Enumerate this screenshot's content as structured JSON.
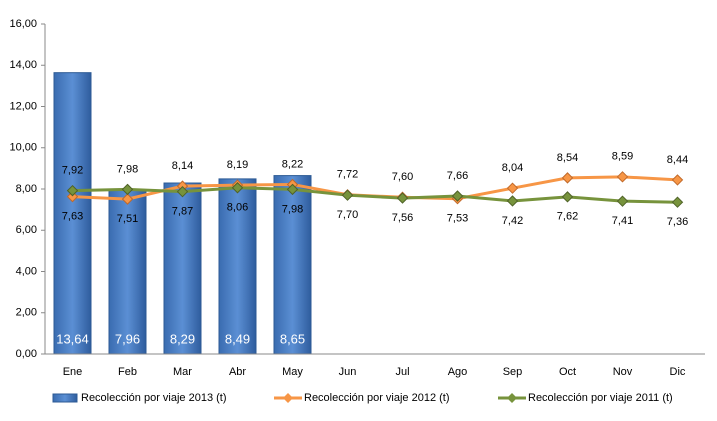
{
  "chart_data": {
    "type": "bar_line",
    "categories": [
      "Ene",
      "Feb",
      "Mar",
      "Abr",
      "May",
      "Jun",
      "Jul",
      "Ago",
      "Sep",
      "Oct",
      "Nov",
      "Dic"
    ],
    "series": [
      {
        "name": "Recolección por viaje 2013 (t)",
        "type": "bar",
        "color": "#4a7ebb",
        "values": [
          13.64,
          7.96,
          8.29,
          8.49,
          8.65,
          null,
          null,
          null,
          null,
          null,
          null,
          null
        ],
        "value_labels": [
          "13,64",
          "7,96",
          "8,29",
          "8,49",
          "8,65",
          null,
          null,
          null,
          null,
          null,
          null,
          null
        ]
      },
      {
        "name": "Recolección por viaje 2012 (t)",
        "type": "line",
        "color": "#f79646",
        "values": [
          7.63,
          7.51,
          8.14,
          8.19,
          8.22,
          7.72,
          7.6,
          7.53,
          8.04,
          8.54,
          8.59,
          8.44
        ],
        "value_labels": [
          "7,63",
          "7,51",
          "8,14",
          "8,19",
          "8,22",
          "7,72",
          "7,60",
          "7,53",
          "8,04",
          "8,54",
          "8,59",
          "8,44"
        ]
      },
      {
        "name": "Recolección por viaje 2011 (t)",
        "type": "line",
        "color": "#77933c",
        "values": [
          7.92,
          7.98,
          7.87,
          8.06,
          7.98,
          7.7,
          7.56,
          7.66,
          7.42,
          7.62,
          7.41,
          7.36
        ],
        "value_labels": [
          "7,92",
          "7,98",
          "7,87",
          "8,06",
          "7,98",
          "7,70",
          "7,56",
          "7,66",
          "7,42",
          "7,62",
          "7,41",
          "7,36"
        ]
      }
    ],
    "ylim": [
      0,
      16
    ],
    "yticks": [
      {
        "value": 0,
        "label": "0,00"
      },
      {
        "value": 2,
        "label": "2,00"
      },
      {
        "value": 4,
        "label": "4,00"
      },
      {
        "value": 6,
        "label": "6,00"
      },
      {
        "value": 8,
        "label": "8,00"
      },
      {
        "value": 10,
        "label": "10,00"
      },
      {
        "value": 12,
        "label": "12,00"
      },
      {
        "value": 14,
        "label": "14,00"
      },
      {
        "value": 16,
        "label": "16,00"
      }
    ],
    "grid": false,
    "legend": "bottom"
  }
}
